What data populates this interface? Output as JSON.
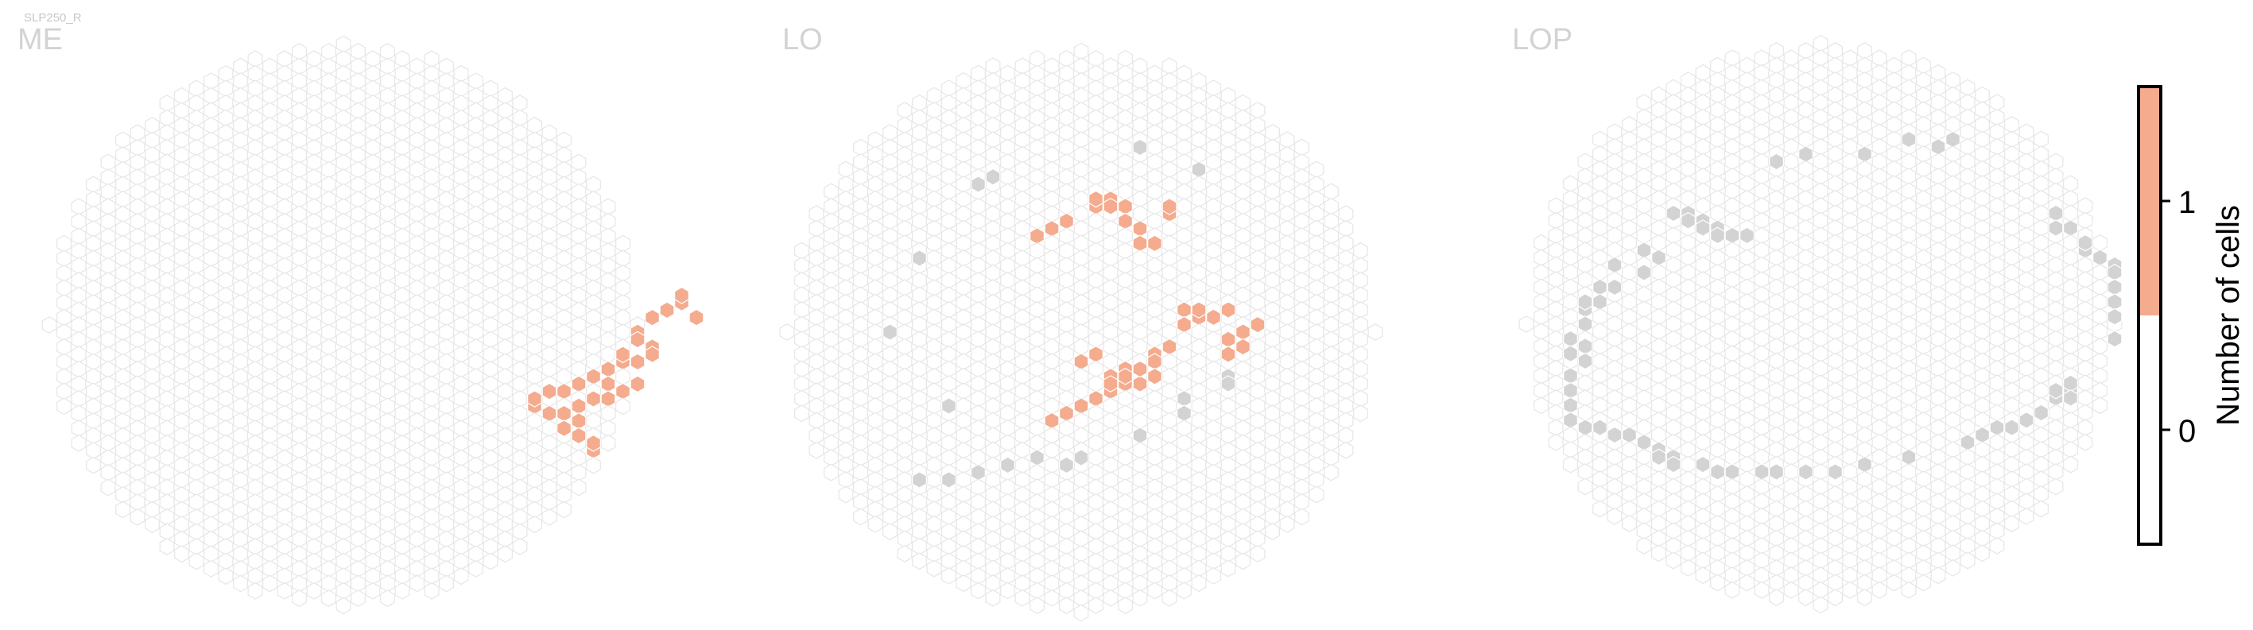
{
  "tag": "SLP250_R",
  "colors": {
    "empty_fill": "#ffffff",
    "empty_stroke": "#e6e6e6",
    "value1": "#f4ab8e",
    "outside": "#d3d3d3"
  },
  "colorbar": {
    "title": "Number of cells",
    "ticks": [
      "0",
      "1"
    ],
    "range": [
      -0.5,
      1.5
    ]
  },
  "chart_data": [
    {
      "type": "heatmap",
      "title": "ME",
      "value_scale": {
        "0": "white",
        "1": "#f4ab8e"
      },
      "cells_value_1": [
        [
          22,
          -2
        ],
        [
          23,
          -3
        ],
        [
          24,
          -1
        ],
        [
          23,
          -4
        ],
        [
          21,
          -1
        ],
        [
          20,
          1
        ],
        [
          20,
          2
        ],
        [
          21,
          3
        ],
        [
          21,
          4
        ],
        [
          20,
          5
        ],
        [
          19,
          4
        ],
        [
          19,
          5
        ],
        [
          18,
          6
        ],
        [
          17,
          7
        ],
        [
          18,
          8
        ],
        [
          19,
          9
        ],
        [
          20,
          8
        ],
        [
          16,
          8
        ],
        [
          15,
          9
        ],
        [
          14,
          9
        ],
        [
          13,
          10
        ],
        [
          13,
          11
        ],
        [
          14,
          12
        ],
        [
          15,
          12
        ],
        [
          16,
          11
        ],
        [
          17,
          10
        ],
        [
          18,
          10
        ],
        [
          16,
          13
        ],
        [
          15,
          14
        ],
        [
          16,
          15
        ],
        [
          17,
          16
        ],
        [
          17,
          17
        ]
      ],
      "cells_outside": []
    },
    {
      "type": "heatmap",
      "title": "LO",
      "value_scale": {
        "0": "white",
        "1": "#f4ab8e"
      },
      "cells_value_1": [
        [
          1,
          -17
        ],
        [
          2,
          -17
        ],
        [
          2,
          -18
        ],
        [
          1,
          -18
        ],
        [
          3,
          -17
        ],
        [
          6,
          -17
        ],
        [
          6,
          -16
        ],
        [
          4,
          -14
        ],
        [
          3,
          -15
        ],
        [
          -1,
          -15
        ],
        [
          -2,
          -14
        ],
        [
          -3,
          -13
        ],
        [
          4,
          -12
        ],
        [
          5,
          -12
        ],
        [
          7,
          -3
        ],
        [
          8,
          -3
        ],
        [
          8,
          -2
        ],
        [
          9,
          -2
        ],
        [
          10,
          -3
        ],
        [
          7,
          -1
        ],
        [
          12,
          -1
        ],
        [
          11,
          0
        ],
        [
          10,
          1
        ],
        [
          11,
          2
        ],
        [
          10,
          3
        ],
        [
          6,
          2
        ],
        [
          5,
          3
        ],
        [
          5,
          4
        ],
        [
          3,
          5
        ],
        [
          3,
          6
        ],
        [
          3,
          7
        ],
        [
          2,
          8
        ],
        [
          1,
          9
        ],
        [
          0,
          10
        ],
        [
          -1,
          11
        ],
        [
          -2,
          12
        ],
        [
          4,
          7
        ],
        [
          5,
          6
        ],
        [
          2,
          7
        ],
        [
          2,
          6
        ],
        [
          4,
          5
        ],
        [
          1,
          3
        ],
        [
          0,
          4
        ]
      ],
      "cells_outside": [
        [
          4,
          -25
        ],
        [
          8,
          -22
        ],
        [
          -6,
          -21
        ],
        [
          -7,
          -20
        ],
        [
          -11,
          -10
        ],
        [
          -13,
          0
        ],
        [
          -9,
          10
        ],
        [
          10,
          6
        ],
        [
          10,
          7
        ],
        [
          -1,
          18
        ],
        [
          -3,
          17
        ],
        [
          -5,
          18
        ],
        [
          -7,
          19
        ],
        [
          -9,
          20
        ],
        [
          -11,
          20
        ],
        [
          0,
          17
        ],
        [
          4,
          14
        ],
        [
          7,
          11
        ],
        [
          7,
          9
        ]
      ]
    },
    {
      "type": "heatmap",
      "title": "LOP",
      "value_scale": {
        "0": "white",
        "1": "#f4ab8e"
      },
      "cells_value_1": [],
      "cells_outside": [
        [
          6,
          -25
        ],
        [
          3,
          -23
        ],
        [
          -1,
          -23
        ],
        [
          -3,
          -22
        ],
        [
          8,
          -24
        ],
        [
          9,
          -25
        ],
        [
          -10,
          -15
        ],
        [
          -9,
          -15
        ],
        [
          -9,
          -14
        ],
        [
          -8,
          -14
        ],
        [
          -8,
          -13
        ],
        [
          -7,
          -13
        ],
        [
          -7,
          -12
        ],
        [
          -6,
          -12
        ],
        [
          -5,
          -12
        ],
        [
          -12,
          -10
        ],
        [
          -11,
          -9
        ],
        [
          -14,
          -8
        ],
        [
          -12,
          -7
        ],
        [
          -15,
          -5
        ],
        [
          -14,
          -5
        ],
        [
          -16,
          -3
        ],
        [
          -15,
          -3
        ],
        [
          -16,
          -2
        ],
        [
          -16,
          0
        ],
        [
          -17,
          2
        ],
        [
          -16,
          3
        ],
        [
          -17,
          4
        ],
        [
          -16,
          5
        ],
        [
          -17,
          7
        ],
        [
          -17,
          9
        ],
        [
          -17,
          11
        ],
        [
          -17,
          13
        ],
        [
          -16,
          14
        ],
        [
          -15,
          14
        ],
        [
          -14,
          15
        ],
        [
          -13,
          15
        ],
        [
          -12,
          16
        ],
        [
          -11,
          17
        ],
        [
          -11,
          18
        ],
        [
          -10,
          18
        ],
        [
          -10,
          19
        ],
        [
          -8,
          19
        ],
        [
          -7,
          20
        ],
        [
          -6,
          20
        ],
        [
          -4,
          20
        ],
        [
          -3,
          20
        ],
        [
          -1,
          20
        ],
        [
          1,
          20
        ],
        [
          3,
          19
        ],
        [
          6,
          18
        ],
        [
          16,
          -15
        ],
        [
          16,
          -13
        ],
        [
          17,
          -13
        ],
        [
          18,
          -11
        ],
        [
          18,
          -10
        ],
        [
          19,
          -9
        ],
        [
          20,
          -8
        ],
        [
          20,
          -7
        ],
        [
          21,
          -7
        ],
        [
          20,
          -5
        ],
        [
          21,
          -5
        ],
        [
          20,
          -3
        ],
        [
          21,
          -3
        ],
        [
          20,
          -1
        ],
        [
          21,
          -1
        ],
        [
          21,
          1
        ],
        [
          20,
          2
        ],
        [
          17,
          8
        ],
        [
          16,
          9
        ],
        [
          17,
          9
        ],
        [
          16,
          10
        ],
        [
          17,
          10
        ],
        [
          15,
          12
        ],
        [
          14,
          13
        ],
        [
          13,
          14
        ],
        [
          12,
          14
        ],
        [
          11,
          15
        ],
        [
          10,
          16
        ]
      ]
    }
  ]
}
